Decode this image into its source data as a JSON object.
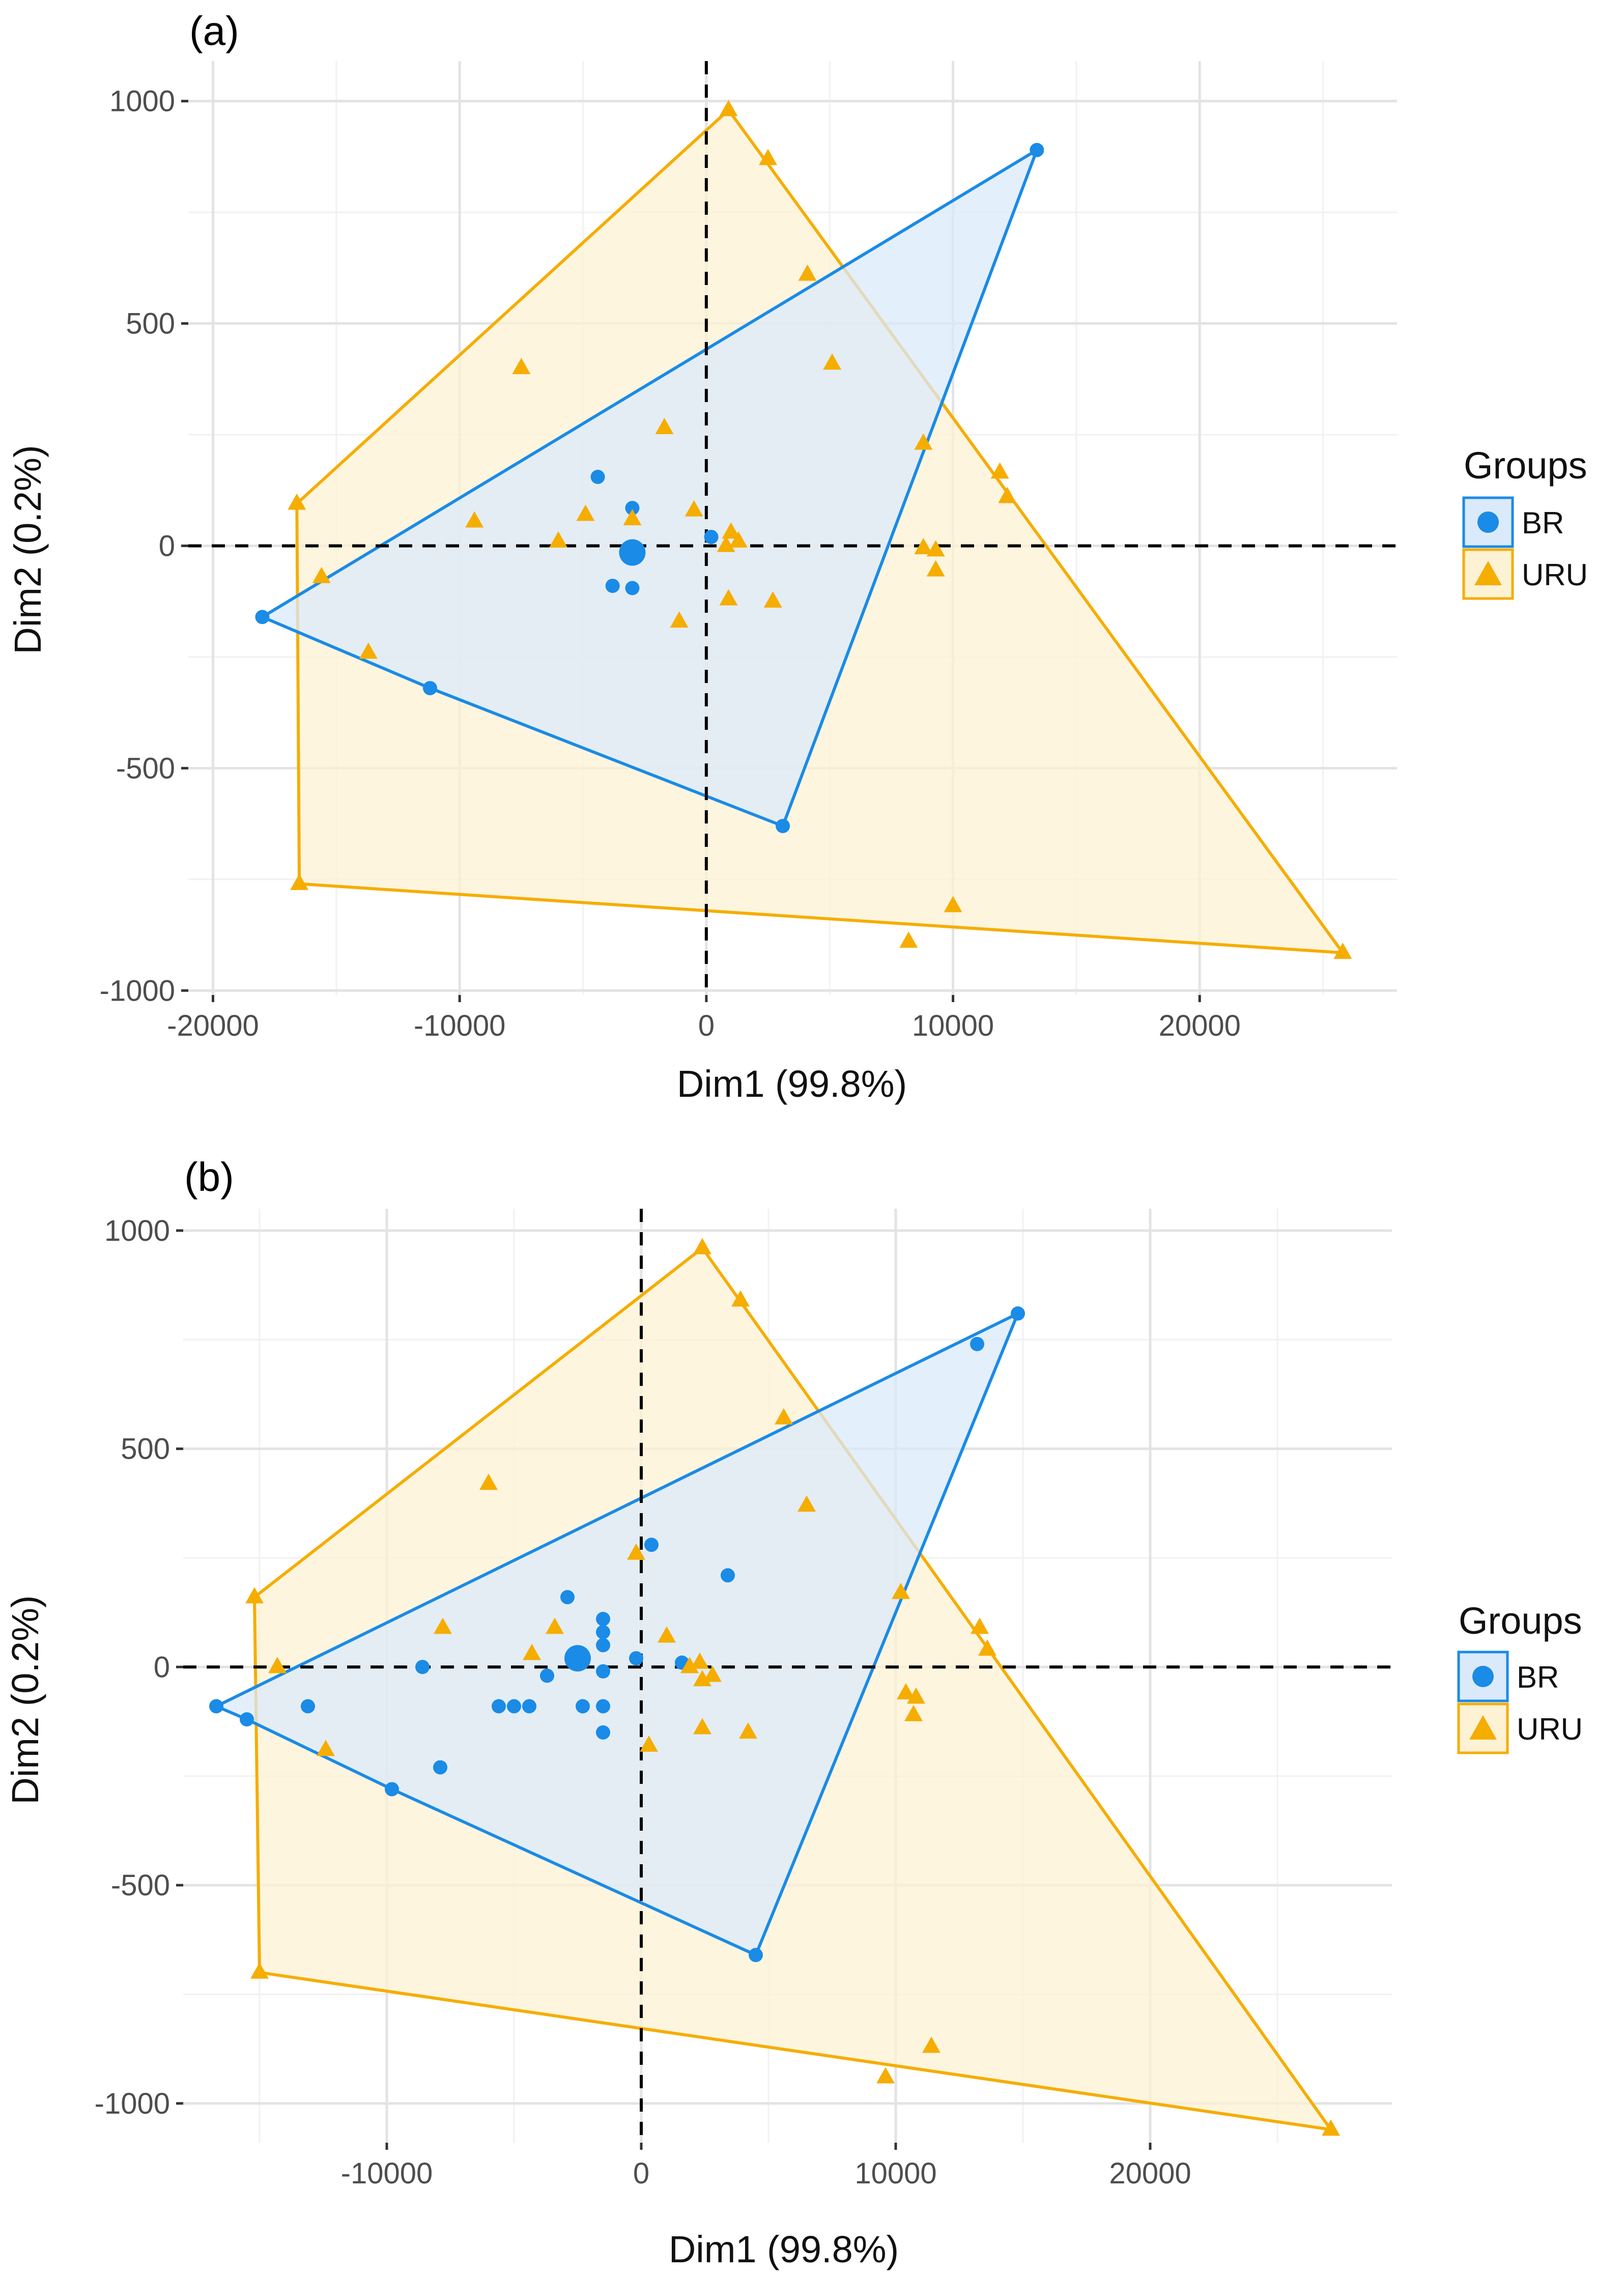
{
  "chart_data": [
    {
      "type": "scatter",
      "panel_label": "(a)",
      "title": "",
      "xlabel": "Dim1 (99.8%)",
      "ylabel": "Dim2 (0.2%)",
      "xlim": [
        -21000,
        28000
      ],
      "ylim": [
        -1010,
        1090
      ],
      "xticks": [
        -20000,
        -10000,
        0,
        10000,
        20000
      ],
      "xtick_labels": [
        "-20000",
        "-10000",
        "0",
        "10000",
        "20000"
      ],
      "yticks": [
        -1000,
        -500,
        0,
        500,
        1000
      ],
      "ytick_labels": [
        "-1000",
        "-500",
        "0",
        "500",
        "1000"
      ],
      "grid": true,
      "reference_lines": {
        "x": 0,
        "y": 0,
        "style": "dashed"
      },
      "legend": {
        "title": "Groups",
        "position": "right"
      },
      "series": [
        {
          "name": "BR",
          "color": "#1a8be6",
          "marker": "circle",
          "hull_fill": "#dbeafb",
          "points": [
            [
              13400,
              890
            ],
            [
              -18000,
              -160
            ],
            [
              -11200,
              -320
            ],
            [
              3100,
              -630
            ],
            [
              -4400,
              155
            ],
            [
              -3000,
              85
            ],
            [
              -3800,
              -90
            ],
            [
              -3000,
              -95
            ],
            [
              200,
              20
            ]
          ],
          "centroid": [
            -3000,
            -15
          ],
          "hull": [
            [
              13400,
              890
            ],
            [
              -18000,
              -160
            ],
            [
              -11200,
              -320
            ],
            [
              3100,
              -630
            ]
          ]
        },
        {
          "name": "URU",
          "color": "#f5ad00",
          "marker": "triangle",
          "hull_fill": "#fdf2d4",
          "points": [
            [
              900,
              980
            ],
            [
              2500,
              870
            ],
            [
              4100,
              610
            ],
            [
              5100,
              410
            ],
            [
              -7500,
              400
            ],
            [
              -1700,
              265
            ],
            [
              8800,
              230
            ],
            [
              11900,
              165
            ],
            [
              12200,
              110
            ],
            [
              -16600,
              95
            ],
            [
              -9400,
              55
            ],
            [
              -4900,
              70
            ],
            [
              -3000,
              60
            ],
            [
              -500,
              80
            ],
            [
              -6000,
              10
            ],
            [
              800,
              0
            ],
            [
              1000,
              30
            ],
            [
              1300,
              10
            ],
            [
              8800,
              -5
            ],
            [
              9300,
              -10
            ],
            [
              9300,
              -55
            ],
            [
              -15600,
              -70
            ],
            [
              900,
              -120
            ],
            [
              2700,
              -125
            ],
            [
              -1100,
              -170
            ],
            [
              -13700,
              -240
            ],
            [
              10000,
              -810
            ],
            [
              8200,
              -890
            ],
            [
              -16500,
              -760
            ],
            [
              25800,
              -915
            ]
          ],
          "hull": [
            [
              900,
              980
            ],
            [
              -16600,
              95
            ],
            [
              -16500,
              -760
            ],
            [
              25800,
              -915
            ]
          ]
        }
      ]
    },
    {
      "type": "scatter",
      "panel_label": "(b)",
      "title": "",
      "xlabel": "Dim1 (99.8%)",
      "ylabel": "Dim2 (0.2%)",
      "xlim": [
        -18000,
        29500
      ],
      "ylim": [
        -1090,
        1050
      ],
      "xticks": [
        -10000,
        0,
        10000,
        20000
      ],
      "xtick_labels": [
        "-10000",
        "0",
        "10000",
        "20000"
      ],
      "yticks": [
        -1000,
        -500,
        0,
        500,
        1000
      ],
      "ytick_labels": [
        "-1000",
        "-500",
        "0",
        "500",
        "1000"
      ],
      "grid": true,
      "reference_lines": {
        "x": 0,
        "y": 0,
        "style": "dashed"
      },
      "legend": {
        "title": "Groups",
        "position": "right"
      },
      "series": [
        {
          "name": "BR",
          "color": "#1a8be6",
          "marker": "circle",
          "hull_fill": "#dbeafb",
          "points": [
            [
              14800,
              810
            ],
            [
              13200,
              740
            ],
            [
              -16700,
              -90
            ],
            [
              -15500,
              -120
            ],
            [
              -9800,
              -280
            ],
            [
              4500,
              -660
            ],
            [
              -13100,
              -90
            ],
            [
              -8600,
              0
            ],
            [
              -7900,
              -230
            ],
            [
              -5600,
              -90
            ],
            [
              -5000,
              -90
            ],
            [
              -4400,
              -90
            ],
            [
              -3700,
              -20
            ],
            [
              -2900,
              160
            ],
            [
              -2300,
              -90
            ],
            [
              -1500,
              110
            ],
            [
              -1500,
              80
            ],
            [
              -1500,
              50
            ],
            [
              -1500,
              -10
            ],
            [
              -1500,
              -90
            ],
            [
              -1500,
              -150
            ],
            [
              -200,
              20
            ],
            [
              400,
              280
            ],
            [
              1600,
              10
            ],
            [
              3400,
              210
            ]
          ],
          "centroid": [
            -2500,
            20
          ],
          "hull": [
            [
              14800,
              810
            ],
            [
              -16700,
              -90
            ],
            [
              -15500,
              -120
            ],
            [
              -9800,
              -280
            ],
            [
              4500,
              -660
            ]
          ]
        },
        {
          "name": "URU",
          "color": "#f5ad00",
          "marker": "triangle",
          "hull_fill": "#fdf2d4",
          "points": [
            [
              2400,
              960
            ],
            [
              3900,
              840
            ],
            [
              5600,
              570
            ],
            [
              6500,
              370
            ],
            [
              -6000,
              420
            ],
            [
              -200,
              260
            ],
            [
              10200,
              170
            ],
            [
              13300,
              90
            ],
            [
              13600,
              40
            ],
            [
              -15200,
              160
            ],
            [
              -7800,
              90
            ],
            [
              -4300,
              30
            ],
            [
              -3400,
              90
            ],
            [
              1000,
              70
            ],
            [
              1900,
              0
            ],
            [
              2300,
              10
            ],
            [
              2400,
              -30
            ],
            [
              2800,
              -20
            ],
            [
              -14300,
              0
            ],
            [
              10400,
              -60
            ],
            [
              10800,
              -70
            ],
            [
              10700,
              -110
            ],
            [
              2400,
              -140
            ],
            [
              4200,
              -150
            ],
            [
              300,
              -180
            ],
            [
              -12400,
              -190
            ],
            [
              11400,
              -870
            ],
            [
              9600,
              -940
            ],
            [
              -15000,
              -700
            ],
            [
              27100,
              -1060
            ]
          ],
          "hull": [
            [
              2400,
              960
            ],
            [
              -15200,
              160
            ],
            [
              -15000,
              -700
            ],
            [
              27100,
              -1060
            ]
          ]
        }
      ]
    }
  ]
}
